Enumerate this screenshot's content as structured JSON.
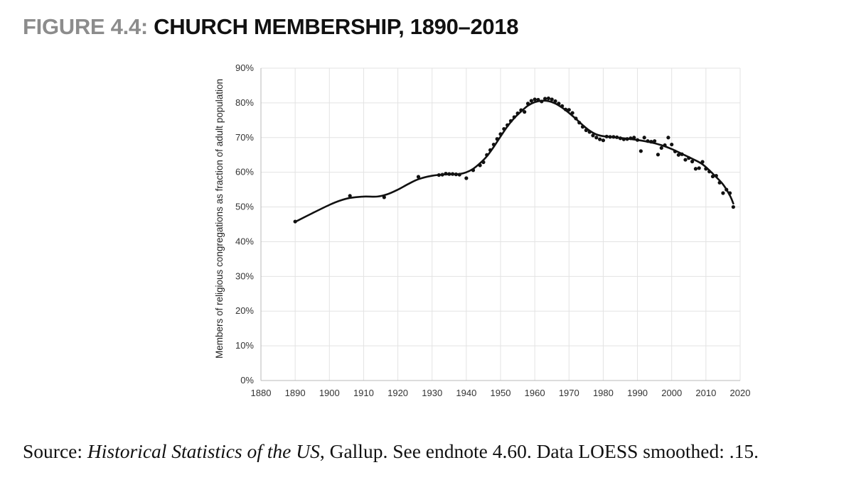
{
  "figure": {
    "label": "FIGURE 4.4:",
    "name": "CHURCH MEMBERSHIP, 1890–2018"
  },
  "source": {
    "prefix": "Source: ",
    "italic": "Historical Statistics of the US",
    "suffix": ", Gallup. See endnote 4.60. Data LOESS smoothed: .15."
  },
  "chart_data": {
    "type": "scatter",
    "title": "",
    "xlabel": "",
    "ylabel": "Members of religious congregations as fraction of adult population",
    "xlim": [
      1880,
      2020
    ],
    "ylim": [
      0,
      90
    ],
    "xticks": [
      "1880",
      "1890",
      "1900",
      "1910",
      "1920",
      "1930",
      "1940",
      "1950",
      "1960",
      "1970",
      "1980",
      "1990",
      "2000",
      "2010",
      "2020"
    ],
    "yticks": [
      "0%",
      "10%",
      "20%",
      "30%",
      "40%",
      "50%",
      "60%",
      "70%",
      "80%",
      "90%"
    ],
    "grid": true,
    "legend": "none",
    "colors": {
      "points": "#111111",
      "line": "#111111",
      "grid": "#e3e3e3"
    },
    "series": [
      {
        "kind": "points",
        "x": [
          1890,
          1906,
          1916,
          1926,
          1932,
          1933,
          1934,
          1935,
          1936,
          1937,
          1938,
          1940,
          1942,
          1944,
          1945,
          1946,
          1947,
          1948,
          1949,
          1950,
          1951,
          1952,
          1953,
          1954,
          1955,
          1956,
          1957,
          1958,
          1959,
          1960,
          1961,
          1962,
          1963,
          1964,
          1965,
          1966,
          1967,
          1968,
          1969,
          1970,
          1971,
          1972,
          1973,
          1974,
          1975,
          1976,
          1977,
          1978,
          1979,
          1980,
          1981,
          1982,
          1983,
          1984,
          1985,
          1986,
          1987,
          1988,
          1989,
          1990,
          1991,
          1992,
          1993,
          1994,
          1995,
          1996,
          1997,
          1998,
          1999,
          2000,
          2001,
          2002,
          2003,
          2004,
          2005,
          2006,
          2007,
          2008,
          2009,
          2010,
          2011,
          2012,
          2013,
          2014,
          2015,
          2016,
          2017,
          2018
        ],
        "y": [
          45.8,
          53.2,
          52.8,
          58.7,
          59.2,
          59.3,
          59.6,
          59.5,
          59.5,
          59.4,
          59.3,
          58.3,
          60.6,
          62.0,
          62.9,
          65.0,
          66.4,
          68.0,
          69.6,
          71.0,
          72.5,
          73.6,
          74.8,
          75.9,
          77.0,
          77.9,
          77.4,
          79.8,
          80.6,
          81.0,
          80.9,
          80.4,
          81.2,
          81.3,
          81.0,
          80.5,
          79.8,
          79.1,
          78.1,
          78.0,
          77.1,
          75.5,
          74.3,
          73.1,
          72.1,
          71.6,
          70.6,
          70.0,
          69.5,
          69.2,
          70.3,
          70.2,
          70.2,
          70.1,
          69.8,
          69.5,
          69.6,
          69.8,
          70.0,
          69.3,
          66.1,
          70.0,
          69.0,
          68.8,
          69.0,
          65.1,
          67.0,
          67.8,
          70.0,
          68.0,
          66.0,
          65.0,
          65.2,
          63.6,
          64.1,
          63.1,
          61.0,
          61.2,
          63.0,
          61.0,
          60.2,
          58.8,
          59.0,
          57.0,
          54.0,
          55.0,
          54.0,
          50.0
        ]
      },
      {
        "kind": "loess-line",
        "x": [
          1890,
          1895,
          1900,
          1903,
          1906,
          1910,
          1914,
          1917,
          1920,
          1923,
          1926,
          1930,
          1934,
          1938,
          1940,
          1942,
          1944,
          1946,
          1948,
          1950,
          1952,
          1954,
          1956,
          1958,
          1960,
          1962,
          1964,
          1966,
          1968,
          1970,
          1972,
          1974,
          1976,
          1978,
          1980,
          1983,
          1986,
          1990,
          1994,
          1997,
          2000,
          2003,
          2006,
          2009,
          2012,
          2015,
          2017,
          2018
        ],
        "y": [
          45.7,
          48.2,
          50.6,
          51.8,
          52.6,
          53.0,
          53.0,
          53.7,
          55.0,
          56.6,
          58.0,
          59.0,
          59.4,
          59.5,
          60.0,
          61.0,
          62.6,
          64.6,
          67.3,
          70.3,
          73.2,
          75.6,
          77.5,
          79.2,
          80.2,
          80.6,
          80.5,
          79.8,
          78.6,
          77.1,
          75.4,
          73.6,
          72.0,
          70.9,
          70.4,
          70.1,
          69.8,
          69.3,
          68.6,
          67.8,
          66.7,
          65.3,
          63.9,
          62.3,
          59.6,
          56.5,
          53.3,
          51.0
        ]
      }
    ]
  }
}
